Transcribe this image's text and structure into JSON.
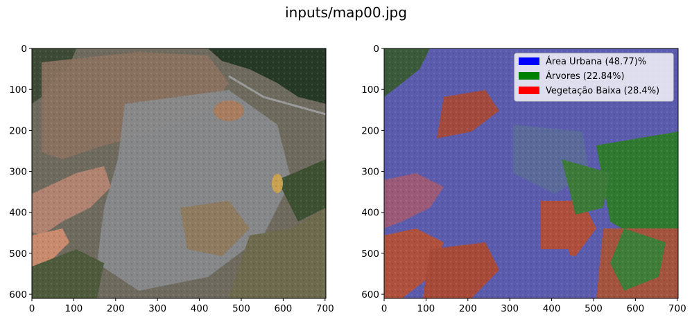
{
  "figure_title": "inputs/map00.jpg",
  "colors": {
    "urban": "#0000ff",
    "trees": "#008000",
    "low_vegetation": "#ff0000"
  },
  "chart_data": [
    {
      "type": "heatmap",
      "title": "",
      "image": "aerial-satellite-photo",
      "xlim": [
        0,
        702
      ],
      "ylim": [
        610,
        0
      ],
      "xticks": [
        0,
        100,
        200,
        300,
        400,
        500,
        600,
        700
      ],
      "yticks": [
        0,
        100,
        200,
        300,
        400,
        500,
        600
      ],
      "grid": false
    },
    {
      "type": "heatmap",
      "title": "",
      "image": "segmentation-overlay",
      "xlim": [
        0,
        702
      ],
      "ylim": [
        610,
        0
      ],
      "xticks": [
        0,
        100,
        200,
        300,
        400,
        500,
        600,
        700
      ],
      "yticks": [
        0,
        100,
        200,
        300,
        400,
        500,
        600
      ],
      "grid": false,
      "legend_position": "upper-right",
      "legend": [
        {
          "label": "Área Urbana (48.77)%",
          "color": "#0000ff",
          "percent": 48.77
        },
        {
          "label": "Árvores (22.84%)",
          "color": "#008000",
          "percent": 22.84
        },
        {
          "label": "Vegetação Baixa (28.4%)",
          "color": "#ff0000",
          "percent": 28.4
        }
      ]
    }
  ]
}
